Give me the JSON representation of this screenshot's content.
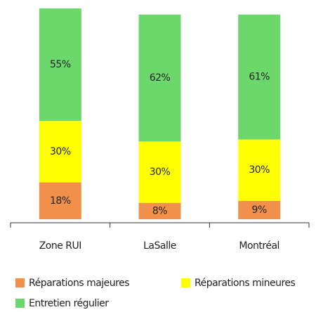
{
  "chart_data": {
    "type": "stacked_bar",
    "categories": [
      "Zone RUI",
      "LaSalle",
      "Montréal"
    ],
    "series": [
      {
        "name": "Réparations majeures",
        "color": "#f0904a",
        "values": [
          18,
          8,
          9
        ],
        "value_labels": [
          "18%",
          "8%",
          "9%"
        ]
      },
      {
        "name": "Réparations mineures",
        "color": "#ffff00",
        "values": [
          30,
          30,
          30
        ],
        "value_labels": [
          "30%",
          "30%",
          "30%"
        ]
      },
      {
        "name": "Entretien régulier",
        "color": "#6cd86c",
        "values": [
          55,
          62,
          61
        ],
        "value_labels": [
          "55%",
          "62%",
          "61%"
        ]
      }
    ],
    "ylim": [
      0,
      103
    ],
    "legend": "bottom"
  }
}
